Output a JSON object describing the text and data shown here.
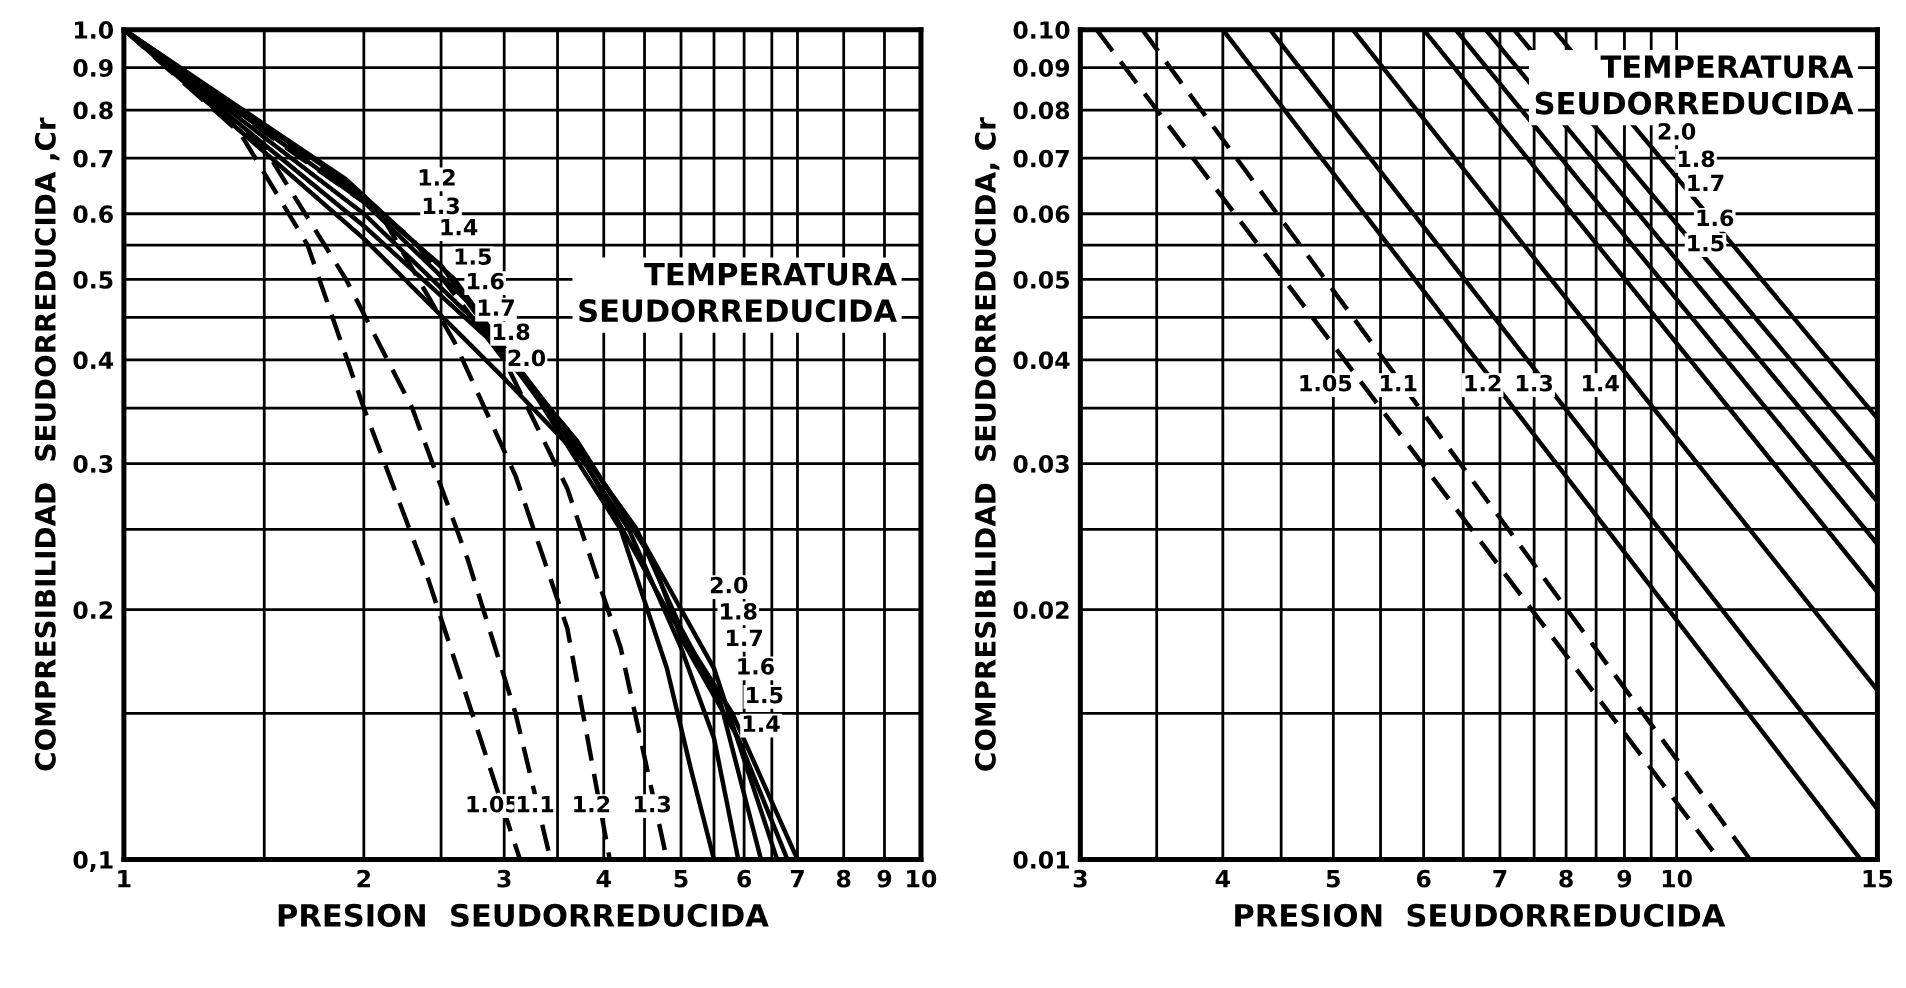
{
  "chart_data": [
    {
      "type": "line",
      "xlabel": "PRESION  SEUDORREDUCIDA",
      "ylabel": "COMPRESIBILIDAD  SEUDORREDUCIDA ,Cr",
      "log": "xy",
      "grid": true,
      "xlim": [
        1,
        10
      ],
      "ylim": [
        0.1,
        1.0
      ],
      "xticks": [
        1,
        {
          "value": 1.5,
          "label": null
        },
        2,
        {
          "value": 2.5,
          "label": null
        },
        3,
        {
          "value": 3.5,
          "label": null
        },
        4,
        {
          "value": 4.5,
          "label": null
        },
        5,
        {
          "value": 5.5,
          "label": null
        },
        6,
        {
          "value": 6.5,
          "label": null
        },
        7,
        8,
        9,
        10
      ],
      "yticks": [
        {
          "value": 0.1,
          "label": "0,1"
        },
        {
          "value": 0.15,
          "label": null
        },
        0.2,
        {
          "value": 0.25,
          "label": null
        },
        0.3,
        {
          "value": 0.35,
          "label": null
        },
        0.4,
        {
          "value": 0.45,
          "label": null
        },
        0.5,
        {
          "value": 0.55,
          "label": null
        },
        0.6,
        0.7,
        0.8,
        0.9,
        {
          "value": 1.0,
          "label": "1.0"
        }
      ],
      "series": [
        {
          "color": "#000000",
          "line_style": "dashed",
          "x": [
            1,
            1.4,
            1.7,
            2.0,
            2.4,
            2.8,
            3.14
          ],
          "values": [
            1,
            0.75,
            0.55,
            0.35,
            0.22,
            0.14,
            0.1
          ]
        },
        {
          "color": "#000000",
          "line_style": "dashed",
          "x": [
            1,
            1.5,
            1.9,
            2.3,
            2.7,
            3.1,
            3.43
          ],
          "values": [
            1,
            0.72,
            0.5,
            0.35,
            0.23,
            0.15,
            0.1
          ]
        },
        {
          "color": "#000000",
          "line_style": "dashed",
          "x": [
            1,
            1.6,
            2.1,
            2.6,
            3.1,
            3.6,
            4.07
          ],
          "values": [
            1,
            0.72,
            0.6,
            0.42,
            0.29,
            0.19,
            0.1
          ]
        },
        {
          "color": "#000000",
          "line_style": "dashed",
          "x": [
            1,
            1.7,
            2.3,
            3.0,
            3.6,
            4.2,
            4.8
          ],
          "values": [
            1,
            0.7,
            0.56,
            0.4,
            0.28,
            0.18,
            0.1
          ]
        },
        {
          "color": "#000000",
          "line_style": "solid",
          "x": [
            1,
            1.8,
            2.5,
            3.3,
            4.2,
            4.8,
            5.15,
            5.5
          ],
          "values": [
            1,
            0.68,
            0.52,
            0.36,
            0.25,
            0.17,
            0.128,
            0.1
          ]
        },
        {
          "color": "#000000",
          "line_style": "solid",
          "x": [
            1,
            1.9,
            2.6,
            3.4,
            4.3,
            5.0,
            5.5,
            5.9
          ],
          "values": [
            1,
            0.66,
            0.5,
            0.35,
            0.25,
            0.18,
            0.14,
            0.1
          ]
        },
        {
          "color": "#000000",
          "line_style": "solid",
          "x": [
            1,
            2,
            2.7,
            3.5,
            4.4,
            5.0,
            5.6,
            6.3
          ],
          "values": [
            1,
            0.62,
            0.47,
            0.34,
            0.25,
            0.19,
            0.155,
            0.1
          ]
        },
        {
          "color": "#000000",
          "line_style": "solid",
          "x": [
            1,
            2,
            2.8,
            3.6,
            4.5,
            5.5,
            6.6
          ],
          "values": [
            1,
            0.6,
            0.44,
            0.33,
            0.24,
            0.17,
            0.1
          ]
        },
        {
          "color": "#000000",
          "line_style": "solid",
          "x": [
            1,
            2,
            2.9,
            3.7,
            4.6,
            5.0,
            5.9,
            6.8
          ],
          "values": [
            1,
            0.58,
            0.42,
            0.32,
            0.23,
            0.185,
            0.14,
            0.1
          ]
        },
        {
          "color": "#000000",
          "line_style": "solid",
          "x": [
            1,
            2,
            3,
            3.8,
            4.8,
            5.8,
            7.0
          ],
          "values": [
            1,
            0.56,
            0.38,
            0.3,
            0.2,
            0.15,
            0.1
          ]
        }
      ],
      "annotations": [
        "TEMPERATURA\nSEUDORREDUCIDA",
        {
          "text": "1.2",
          "x": 2.47,
          "y": 0.66
        },
        {
          "text": "1.3",
          "x": 2.5,
          "y": 0.61
        },
        {
          "text": "1.4",
          "x": 2.63,
          "y": 0.575
        },
        {
          "text": "1.5",
          "x": 2.74,
          "y": 0.53
        },
        {
          "text": "1.6",
          "x": 2.84,
          "y": 0.495
        },
        {
          "text": "1.7",
          "x": 2.93,
          "y": 0.46
        },
        {
          "text": "1.8",
          "x": 3.06,
          "y": 0.43
        },
        {
          "text": "2.0",
          "x": 3.2,
          "y": 0.4
        },
        {
          "text": "2.0",
          "x": 5.74,
          "y": 0.213
        },
        {
          "text": "1.8",
          "x": 5.9,
          "y": 0.198
        },
        {
          "text": "1.7",
          "x": 6.0,
          "y": 0.184
        },
        {
          "text": "1.6",
          "x": 6.2,
          "y": 0.17
        },
        {
          "text": "1.5",
          "x": 6.36,
          "y": 0.157
        },
        {
          "text": "1.4",
          "x": 6.3,
          "y": 0.145
        },
        {
          "text": "1.05",
          "x": 2.9,
          "y": 0.116
        },
        {
          "text": "1.1",
          "x": 3.28,
          "y": 0.116
        },
        {
          "text": "1.2",
          "x": 3.86,
          "y": 0.116
        },
        {
          "text": "1.3",
          "x": 4.6,
          "y": 0.116
        }
      ]
    },
    {
      "type": "line",
      "xlabel": "PRESION  SEUDORREDUCIDA",
      "ylabel": "COMPRESIBILIDAD  SEUDORREDUCIDA, Cr",
      "log": "xy",
      "grid": true,
      "xlim": [
        3,
        15
      ],
      "ylim": [
        0.01,
        0.1
      ],
      "xticks": [
        3,
        {
          "value": 3.5,
          "label": null
        },
        4,
        {
          "value": 4.5,
          "label": null
        },
        5,
        {
          "value": 5.5,
          "label": null
        },
        6,
        {
          "value": 6.5,
          "label": null
        },
        7,
        {
          "value": 7.5,
          "label": null
        },
        8,
        {
          "value": 8.5,
          "label": null
        },
        9,
        {
          "value": 9.5,
          "label": null
        },
        10,
        15
      ],
      "yticks": [
        {
          "value": 0.01,
          "label": "0.01"
        },
        {
          "value": 0.015,
          "label": null
        },
        0.02,
        {
          "value": 0.025,
          "label": null
        },
        0.03,
        {
          "value": 0.035,
          "label": null
        },
        0.04,
        {
          "value": 0.045,
          "label": null
        },
        0.05,
        {
          "value": 0.055,
          "label": null
        },
        0.06,
        0.07,
        0.08,
        0.09,
        {
          "value": 0.1,
          "label": "0.10"
        }
      ],
      "series": [
        {
          "color": "#000000",
          "line_style": "dashed",
          "x": [
            3.1,
            10.9
          ],
          "values": [
            0.1,
            0.01
          ]
        },
        {
          "color": "#000000",
          "line_style": "dashed",
          "x": [
            3.4,
            11.6
          ],
          "values": [
            0.1,
            0.01
          ]
        },
        {
          "color": "#000000",
          "line_style": "solid",
          "x": [
            4.0,
            14.5
          ],
          "values": [
            0.1,
            0.01
          ]
        },
        {
          "color": "#000000",
          "line_style": "solid",
          "x": [
            4.4,
            15
          ],
          "values": [
            0.1,
            0.0115
          ]
        },
        {
          "color": "#000000",
          "line_style": "solid",
          "x": [
            5.2,
            15
          ],
          "values": [
            0.1,
            0.016
          ]
        },
        {
          "color": "#000000",
          "line_style": "solid",
          "x": [
            6.0,
            15
          ],
          "values": [
            0.1,
            0.021
          ]
        },
        {
          "color": "#000000",
          "line_style": "solid",
          "x": [
            6.4,
            15
          ],
          "values": [
            0.1,
            0.024
          ]
        },
        {
          "color": "#000000",
          "line_style": "solid",
          "x": [
            6.8,
            15
          ],
          "values": [
            0.1,
            0.027
          ]
        },
        {
          "color": "#000000",
          "line_style": "solid",
          "x": [
            7.2,
            15
          ],
          "values": [
            0.1,
            0.03
          ]
        },
        {
          "color": "#000000",
          "line_style": "solid",
          "x": [
            7.8,
            15
          ],
          "values": [
            0.1,
            0.034
          ]
        }
      ],
      "annotations": [
        "TEMPERATURA\nSEUDORREDUCIDA",
        {
          "text": "1.05",
          "x": 4.92,
          "y": 0.0373
        },
        {
          "text": "1.1",
          "x": 5.7,
          "y": 0.0373
        },
        {
          "text": "1.2",
          "x": 6.76,
          "y": 0.0373
        },
        {
          "text": "1.3",
          "x": 7.5,
          "y": 0.0373
        },
        {
          "text": "1.4",
          "x": 8.57,
          "y": 0.0373
        },
        {
          "text": "2.0",
          "x": 10.0,
          "y": 0.075
        },
        {
          "text": "1.8",
          "x": 10.4,
          "y": 0.0695
        },
        {
          "text": "1.7",
          "x": 10.6,
          "y": 0.065
        },
        {
          "text": "1.6",
          "x": 10.8,
          "y": 0.059
        },
        {
          "text": "1.5",
          "x": 10.6,
          "y": 0.055
        }
      ]
    }
  ]
}
